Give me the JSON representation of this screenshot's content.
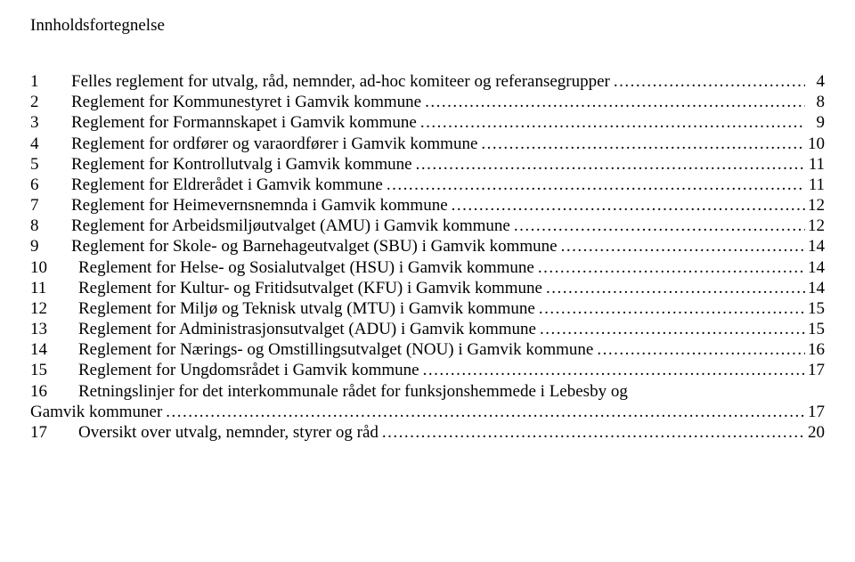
{
  "colors": {
    "background": "#ffffff",
    "text": "#000000"
  },
  "typography": {
    "font_family": "Times New Roman",
    "base_fontsize_pt": 14,
    "line_height": 1.22
  },
  "heading": "Innholdsfortegnelse",
  "toc": [
    {
      "num": "1",
      "title": "Felles reglement for utvalg, råd, nemnder, ad-hoc komiteer og referansegrupper",
      "page": "4"
    },
    {
      "num": "2",
      "title": "Reglement for Kommunestyret i Gamvik kommune",
      "page": "8"
    },
    {
      "num": "3",
      "title": "Reglement for Formannskapet i Gamvik kommune",
      "page": "9"
    },
    {
      "num": "4",
      "title": "Reglement for ordfører og varaordfører i Gamvik kommune",
      "page": "10"
    },
    {
      "num": "5",
      "title": "Reglement for Kontrollutvalg i Gamvik kommune",
      "page": "11"
    },
    {
      "num": "6",
      "title": "Reglement for Eldrerådet i Gamvik kommune",
      "page": "11"
    },
    {
      "num": "7",
      "title": "Reglement for Heimevernsnemnda i Gamvik kommune",
      "page": "12"
    },
    {
      "num": "8",
      "title": "Reglement for Arbeidsmiljøutvalget (AMU) i Gamvik kommune",
      "page": "12"
    },
    {
      "num": "9",
      "title": "Reglement for Skole- og Barnehageutvalget (SBU) i Gamvik kommune",
      "page": "14"
    },
    {
      "num": "10",
      "title": "Reglement for Helse- og Sosialutvalget (HSU) i Gamvik kommune",
      "page": "14"
    },
    {
      "num": "11",
      "title": "Reglement for Kultur- og Fritidsutvalget (KFU) i Gamvik kommune",
      "page": "14"
    },
    {
      "num": "12",
      "title": "Reglement for Miljø og Teknisk utvalg (MTU) i Gamvik kommune",
      "page": "15"
    },
    {
      "num": "13",
      "title": "Reglement for Administrasjonsutvalget (ADU) i Gamvik kommune",
      "page": "15"
    },
    {
      "num": "14",
      "title": "Reglement for Nærings- og Omstillingsutvalget (NOU) i Gamvik kommune",
      "page": "16"
    },
    {
      "num": "15",
      "title": "Reglement for Ungdomsrådet i Gamvik kommune",
      "page": "17"
    },
    {
      "num": "16",
      "title_line1": "Retningslinjer for det interkommunale rådet for funksjonshemmede i Lebesby og",
      "title_line2": "Gamvik kommuner",
      "page": "17"
    },
    {
      "num": "17",
      "title": "Oversikt over utvalg, nemnder, styrer og råd",
      "page": "20"
    }
  ]
}
